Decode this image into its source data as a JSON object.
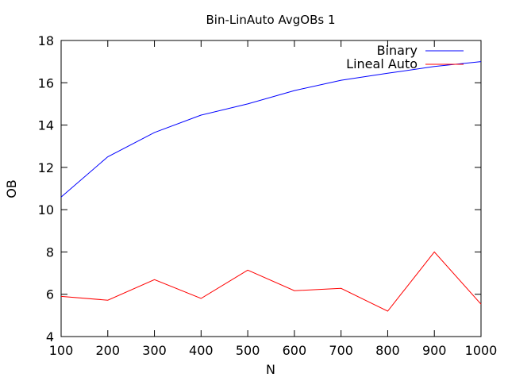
{
  "chart_data": {
    "type": "line",
    "title": "Bin-LinAuto AvgOBs 1",
    "xlabel": "N",
    "ylabel": "OB",
    "xlim": [
      100,
      1000
    ],
    "ylim": [
      4,
      18
    ],
    "x_ticks": [
      100,
      200,
      300,
      400,
      500,
      600,
      700,
      800,
      900,
      1000
    ],
    "y_ticks": [
      4,
      6,
      8,
      10,
      12,
      14,
      16,
      18
    ],
    "grid": false,
    "legend_position": "top-right",
    "x": [
      100,
      200,
      300,
      400,
      500,
      600,
      700,
      800,
      900,
      1000
    ],
    "series": [
      {
        "name": "Binary",
        "color": "#0000ff",
        "values": [
          10.6,
          12.5,
          13.65,
          14.47,
          15.0,
          15.63,
          16.12,
          16.45,
          16.77,
          17.0
        ]
      },
      {
        "name": "Lineal Auto",
        "color": "#ff0000",
        "values": [
          5.9,
          5.72,
          6.69,
          5.8,
          7.14,
          6.17,
          6.28,
          5.2,
          8.0,
          5.53
        ]
      }
    ]
  }
}
